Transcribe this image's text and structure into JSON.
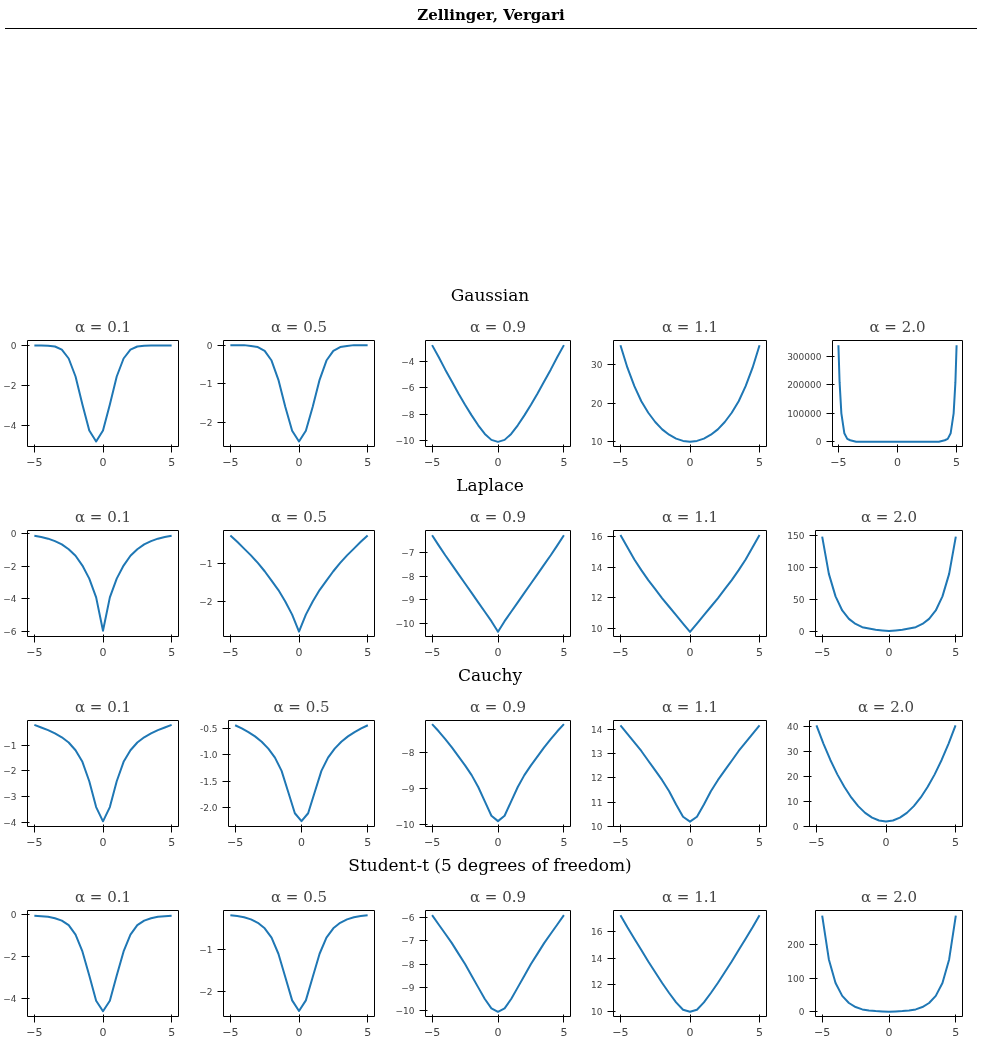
{
  "chart_data": [
    {
      "type": "line",
      "title": "α = 0.1",
      "annotations": [
        "Zellinger, Vergari"
      ],
      "color": "#1f77b4",
      "grid": false,
      "x": [
        -5,
        -4.5,
        -4,
        -3.5,
        -3,
        -2.5,
        -2,
        -1.5,
        -1,
        -0.5,
        0,
        0.5,
        1,
        1.5,
        2,
        2.5,
        3,
        3.5,
        4,
        4.5,
        5
      ],
      "values": [
        0,
        0,
        -0.01,
        -0.05,
        -0.21,
        -0.65,
        -1.55,
        -2.95,
        -4.25,
        -4.8,
        -4.25,
        -2.95,
        -1.55,
        -0.65,
        -0.21,
        -0.05,
        -0.01,
        0,
        0,
        0,
        0
      ],
      "xlim": [
        -5.5,
        5.5
      ],
      "xticks": [
        -5,
        0,
        5
      ],
      "ylim": [
        -5.05,
        0.25
      ],
      "yticks": [
        -4,
        -2,
        0
      ]
    },
    {
      "type": "line",
      "title": "α = 0.5",
      "color": "#1f77b4",
      "grid": false,
      "x": [
        -5,
        -4.5,
        -4,
        -3.5,
        -3,
        -2.5,
        -2,
        -1.5,
        -1,
        -0.5,
        0,
        0.5,
        1,
        1.5,
        2,
        2.5,
        3,
        3.5,
        4,
        4.5,
        5
      ],
      "values": [
        0,
        0,
        0,
        -0.02,
        -0.05,
        -0.15,
        -0.4,
        -0.9,
        -1.6,
        -2.22,
        -2.5,
        -2.22,
        -1.6,
        -0.9,
        -0.4,
        -0.15,
        -0.05,
        -0.02,
        0,
        0,
        0
      ],
      "xlim": [
        -5.5,
        5.5
      ],
      "xticks": [
        -5,
        0,
        5
      ],
      "ylim": [
        -2.63,
        0.12
      ],
      "yticks": [
        -2,
        -1,
        0
      ]
    },
    {
      "type": "line",
      "title": "α = 0.9",
      "annotations": [
        "Gaussian"
      ],
      "color": "#1f77b4",
      "grid": false,
      "x": [
        -5,
        -4.5,
        -4,
        -3.5,
        -3,
        -2.5,
        -2,
        -1.5,
        -1,
        -0.5,
        0,
        0.5,
        1,
        1.5,
        2,
        2.5,
        3,
        3.5,
        4,
        4.5,
        5
      ],
      "values": [
        -2.8,
        -3.7,
        -4.65,
        -5.55,
        -6.45,
        -7.3,
        -8.1,
        -8.85,
        -9.5,
        -9.95,
        -10.1,
        -9.95,
        -9.5,
        -8.85,
        -8.1,
        -7.3,
        -6.45,
        -5.55,
        -4.65,
        -3.7,
        -2.8
      ],
      "xlim": [
        -5.5,
        5.5
      ],
      "xticks": [
        -5,
        0,
        5
      ],
      "ylim": [
        -10.45,
        -2.45
      ],
      "yticks": [
        -10,
        -8,
        -6,
        -4
      ]
    },
    {
      "type": "line",
      "title": "α = 1.1",
      "color": "#1f77b4",
      "grid": false,
      "x": [
        -5,
        -4.5,
        -4,
        -3.5,
        -3,
        -2.5,
        -2,
        -1.5,
        -1,
        -0.5,
        0,
        0.5,
        1,
        1.5,
        2,
        2.5,
        3,
        3.5,
        4,
        4.5,
        5
      ],
      "values": [
        35,
        29.2,
        24.4,
        20.5,
        17.5,
        15.1,
        13.2,
        11.8,
        10.8,
        10.2,
        10,
        10.2,
        10.8,
        11.8,
        13.2,
        15.1,
        17.5,
        20.5,
        24.4,
        29.2,
        35
      ],
      "xlim": [
        -5.5,
        5.5
      ],
      "xticks": [
        -5,
        0,
        5
      ],
      "ylim": [
        8.75,
        36.25
      ],
      "yticks": [
        10,
        20,
        30
      ]
    },
    {
      "type": "line",
      "title": "α = 2.0",
      "color": "#1f77b4",
      "grid": false,
      "x": [
        -5,
        -4.9,
        -4.75,
        -4.5,
        -4.25,
        -4,
        -3.5,
        -3,
        -2,
        -1,
        0,
        1,
        2,
        3,
        3.5,
        4,
        4.25,
        4.5,
        4.75,
        4.9,
        5
      ],
      "values": [
        340000,
        210000,
        100000,
        30000,
        10000,
        5000,
        0,
        0,
        0,
        0,
        0,
        0,
        0,
        0,
        0,
        5000,
        10000,
        30000,
        100000,
        210000,
        340000
      ],
      "xlim": [
        -5.5,
        5.5
      ],
      "xticks": [
        -5,
        0,
        5
      ],
      "ylim": [
        -17000,
        357000
      ],
      "yticks": [
        0,
        100000,
        200000,
        300000
      ]
    },
    {
      "type": "line",
      "title": "α = 0.1",
      "color": "#1f77b4",
      "grid": false,
      "x": [
        -5,
        -4.5,
        -4,
        -3.5,
        -3,
        -2.5,
        -2,
        -1.5,
        -1,
        -0.5,
        0,
        0.5,
        1,
        1.5,
        2,
        2.5,
        3,
        3.5,
        4,
        4.5,
        5
      ],
      "values": [
        -0.12,
        -0.2,
        -0.3,
        -0.45,
        -0.65,
        -0.95,
        -1.35,
        -1.95,
        -2.75,
        -3.9,
        -5.95,
        -3.9,
        -2.75,
        -1.95,
        -1.35,
        -0.95,
        -0.65,
        -0.45,
        -0.3,
        -0.2,
        -0.12
      ],
      "xlim": [
        -5.5,
        5.5
      ],
      "xticks": [
        -5,
        0,
        5
      ],
      "ylim": [
        -6.3,
        0.2
      ],
      "yticks": [
        -6,
        -4,
        -2,
        0
      ]
    },
    {
      "type": "line",
      "title": "α = 0.5",
      "color": "#1f77b4",
      "grid": false,
      "x": [
        -5,
        -4.5,
        -4,
        -3.5,
        -3,
        -2.5,
        -2,
        -1.5,
        -1,
        -0.5,
        0,
        0.5,
        1,
        1.5,
        2,
        2.5,
        3,
        3.5,
        4,
        4.5,
        5
      ],
      "values": [
        -0.25,
        -0.42,
        -0.6,
        -0.78,
        -0.98,
        -1.2,
        -1.45,
        -1.7,
        -2.0,
        -2.35,
        -2.8,
        -2.35,
        -2.0,
        -1.7,
        -1.45,
        -1.2,
        -0.98,
        -0.78,
        -0.6,
        -0.42,
        -0.25
      ],
      "xlim": [
        -5.5,
        5.5
      ],
      "xticks": [
        -5,
        0,
        5
      ],
      "ylim": [
        -2.93,
        -0.12
      ],
      "yticks": [
        -2,
        -1
      ]
    },
    {
      "type": "line",
      "title": "α = 0.9",
      "annotations": [
        "Laplace"
      ],
      "color": "#1f77b4",
      "grid": false,
      "x": [
        -5,
        -4.5,
        -4,
        -3.5,
        -3,
        -2.5,
        -2,
        -1.5,
        -1,
        -0.5,
        0,
        0.5,
        1,
        1.5,
        2,
        2.5,
        3,
        3.5,
        4,
        4.5,
        5
      ],
      "values": [
        -6.25,
        -6.68,
        -7.1,
        -7.5,
        -7.9,
        -8.3,
        -8.7,
        -9.1,
        -9.5,
        -9.9,
        -10.35,
        -9.9,
        -9.5,
        -9.1,
        -8.7,
        -8.3,
        -7.9,
        -7.5,
        -7.1,
        -6.68,
        -6.25
      ],
      "xlim": [
        -5.5,
        5.5
      ],
      "xticks": [
        -5,
        0,
        5
      ],
      "ylim": [
        -10.55,
        -6.05
      ],
      "yticks": [
        -10,
        -9,
        -8,
        -7
      ]
    },
    {
      "type": "line",
      "title": "α = 1.1",
      "color": "#1f77b4",
      "grid": false,
      "x": [
        -5,
        -4.5,
        -4,
        -3.5,
        -3,
        -2.5,
        -2,
        -1.5,
        -1,
        -0.5,
        0,
        0.5,
        1,
        1.5,
        2,
        2.5,
        3,
        3.5,
        4,
        4.5,
        5
      ],
      "values": [
        16.1,
        15.3,
        14.5,
        13.8,
        13.15,
        12.55,
        11.95,
        11.4,
        10.85,
        10.3,
        9.75,
        10.3,
        10.85,
        11.4,
        11.95,
        12.55,
        13.15,
        13.8,
        14.5,
        15.3,
        16.1
      ],
      "xlim": [
        -5.5,
        5.5
      ],
      "xticks": [
        -5,
        0,
        5
      ],
      "ylim": [
        9.45,
        16.4
      ],
      "yticks": [
        10,
        12,
        14,
        16
      ]
    },
    {
      "type": "line",
      "title": "α = 2.0",
      "color": "#1f77b4",
      "grid": false,
      "x": [
        -5,
        -4.5,
        -4,
        -3.5,
        -3,
        -2.5,
        -2,
        -1.5,
        -1,
        -0.5,
        0,
        0.5,
        1,
        1.5,
        2,
        2.5,
        3,
        3.5,
        4,
        4.5,
        5
      ],
      "values": [
        148,
        90,
        55,
        33,
        20,
        12,
        7,
        5,
        3,
        2,
        1,
        2,
        3,
        5,
        7,
        12,
        20,
        33,
        55,
        90,
        148
      ],
      "xlim": [
        -5.5,
        5.5
      ],
      "xticks": [
        -5,
        0,
        5
      ],
      "ylim": [
        -7.5,
        157.5
      ],
      "yticks": [
        0,
        50,
        100,
        150
      ]
    },
    {
      "type": "line",
      "title": "α = 0.1",
      "color": "#1f77b4",
      "grid": false,
      "x": [
        -5,
        -4.5,
        -4,
        -3.5,
        -3,
        -2.5,
        -2,
        -1.5,
        -1,
        -0.5,
        0,
        0.5,
        1,
        1.5,
        2,
        2.5,
        3,
        3.5,
        4,
        4.5,
        5
      ],
      "values": [
        -0.22,
        -0.32,
        -0.42,
        -0.55,
        -0.7,
        -0.9,
        -1.2,
        -1.65,
        -2.4,
        -3.4,
        -3.95,
        -3.4,
        -2.4,
        -1.65,
        -1.2,
        -0.9,
        -0.7,
        -0.55,
        -0.42,
        -0.32,
        -0.22
      ],
      "xlim": [
        -5.5,
        5.5
      ],
      "xticks": [
        -5,
        0,
        5
      ],
      "ylim": [
        -4.15,
        -0.05
      ],
      "yticks": [
        -4,
        -3,
        -2,
        -1
      ]
    },
    {
      "type": "line",
      "title": "α = 0.5",
      "color": "#1f77b4",
      "grid": false,
      "x": [
        -5,
        -4.5,
        -4,
        -3.5,
        -3,
        -2.5,
        -2,
        -1.5,
        -1,
        -0.5,
        0,
        0.5,
        1,
        1.5,
        2,
        2.5,
        3,
        3.5,
        4,
        4.5,
        5
      ],
      "values": [
        -0.44,
        -0.5,
        -0.57,
        -0.65,
        -0.75,
        -0.88,
        -1.05,
        -1.3,
        -1.7,
        -2.1,
        -2.25,
        -2.1,
        -1.7,
        -1.3,
        -1.05,
        -0.88,
        -0.75,
        -0.65,
        -0.57,
        -0.5,
        -0.44
      ],
      "xlim": [
        -5.5,
        5.5
      ],
      "xticks": [
        -5,
        0,
        5
      ],
      "ylim": [
        -2.35,
        -0.35
      ],
      "yticks": [
        {
          "value": -2,
          "label": "-2.0"
        },
        {
          "value": -1.5,
          "label": "-1.5"
        },
        {
          "value": -1,
          "label": "-1.0"
        },
        {
          "value": -0.5,
          "label": "-0.5"
        }
      ]
    },
    {
      "type": "line",
      "title": "α = 0.9",
      "annotations": [
        "Cauchy"
      ],
      "color": "#1f77b4",
      "grid": false,
      "x": [
        -5,
        -4.5,
        -4,
        -3.5,
        -3,
        -2.5,
        -2,
        -1.5,
        -1,
        -0.5,
        0,
        0.5,
        1,
        1.5,
        2,
        2.5,
        3,
        3.5,
        4,
        4.5,
        5
      ],
      "values": [
        -7.2,
        -7.4,
        -7.62,
        -7.85,
        -8.1,
        -8.35,
        -8.62,
        -8.95,
        -9.35,
        -9.75,
        -9.9,
        -9.75,
        -9.35,
        -8.95,
        -8.62,
        -8.35,
        -8.1,
        -7.85,
        -7.62,
        -7.4,
        -7.2
      ],
      "xlim": [
        -5.5,
        5.5
      ],
      "xticks": [
        -5,
        0,
        5
      ],
      "ylim": [
        -10.05,
        -7.1
      ],
      "yticks": [
        -10,
        -9,
        -8
      ]
    },
    {
      "type": "line",
      "title": "α = 1.1",
      "color": "#1f77b4",
      "grid": false,
      "x": [
        -5,
        -4.5,
        -4,
        -3.5,
        -3,
        -2.5,
        -2,
        -1.5,
        -1,
        -0.5,
        0,
        0.5,
        1,
        1.5,
        2,
        2.5,
        3,
        3.5,
        4,
        4.5,
        5
      ],
      "values": [
        14.15,
        13.8,
        13.45,
        13.1,
        12.7,
        12.3,
        11.9,
        11.45,
        10.9,
        10.4,
        10.2,
        10.4,
        10.9,
        11.45,
        11.9,
        12.3,
        12.7,
        13.1,
        13.45,
        13.8,
        14.15
      ],
      "xlim": [
        -5.5,
        5.5
      ],
      "xticks": [
        -5,
        0,
        5
      ],
      "ylim": [
        10,
        14.35
      ],
      "yticks": [
        10,
        11,
        12,
        13,
        14
      ]
    },
    {
      "type": "line",
      "title": "α = 2.0",
      "color": "#1f77b4",
      "grid": false,
      "x": [
        -5,
        -4.5,
        -4,
        -3.5,
        -3,
        -2.5,
        -2,
        -1.5,
        -1,
        -0.5,
        0,
        0.5,
        1,
        1.5,
        2,
        2.5,
        3,
        3.5,
        4,
        4.5,
        5
      ],
      "values": [
        40.5,
        33.2,
        26.6,
        20.8,
        15.8,
        11.5,
        8,
        5.3,
        3.4,
        2.2,
        1.8,
        2.2,
        3.4,
        5.3,
        8,
        11.5,
        15.8,
        20.8,
        26.6,
        33.2,
        40.5
      ],
      "xlim": [
        -5.5,
        5.5
      ],
      "xticks": [
        -5,
        0,
        5
      ],
      "ylim": [
        -0.2,
        42.5
      ],
      "yticks": [
        0,
        10,
        20,
        30,
        40
      ]
    },
    {
      "type": "line",
      "title": "α = 0.1",
      "color": "#1f77b4",
      "grid": false,
      "x": [
        -5,
        -4.5,
        -4,
        -3.5,
        -3,
        -2.5,
        -2,
        -1.5,
        -1,
        -0.5,
        0,
        0.5,
        1,
        1.5,
        2,
        2.5,
        3,
        3.5,
        4,
        4.5,
        5
      ],
      "values": [
        -0.05,
        -0.07,
        -0.1,
        -0.17,
        -0.28,
        -0.5,
        -0.95,
        -1.75,
        -2.9,
        -4.1,
        -4.6,
        -4.1,
        -2.9,
        -1.75,
        -0.95,
        -0.5,
        -0.28,
        -0.17,
        -0.1,
        -0.07,
        -0.05
      ],
      "xlim": [
        -5.5,
        5.5
      ],
      "xticks": [
        -5,
        0,
        5
      ],
      "ylim": [
        -4.85,
        0.2
      ],
      "yticks": [
        -4,
        -2,
        0
      ]
    },
    {
      "type": "line",
      "title": "α = 0.5",
      "color": "#1f77b4",
      "grid": false,
      "x": [
        -5,
        -4.5,
        -4,
        -3.5,
        -3,
        -2.5,
        -2,
        -1.5,
        -1,
        -0.5,
        0,
        0.5,
        1,
        1.5,
        2,
        2.5,
        3,
        3.5,
        4,
        4.5,
        5
      ],
      "values": [
        -0.19,
        -0.21,
        -0.24,
        -0.29,
        -0.37,
        -0.5,
        -0.72,
        -1.1,
        -1.65,
        -2.2,
        -2.45,
        -2.2,
        -1.65,
        -1.1,
        -0.72,
        -0.5,
        -0.37,
        -0.29,
        -0.24,
        -0.21,
        -0.19
      ],
      "xlim": [
        -5.5,
        5.5
      ],
      "xticks": [
        -5,
        0,
        5
      ],
      "ylim": [
        -2.58,
        -0.08
      ],
      "yticks": [
        -2,
        -1
      ]
    },
    {
      "type": "line",
      "title": "α = 0.9",
      "annotations": [
        "Student-t (5 degrees of freedom)"
      ],
      "color": "#1f77b4",
      "grid": false,
      "x": [
        -5,
        -4.5,
        -4,
        -3.5,
        -3,
        -2.5,
        -2,
        -1.5,
        -1,
        -0.5,
        0,
        0.5,
        1,
        1.5,
        2,
        2.5,
        3,
        3.5,
        4,
        4.5,
        5
      ],
      "values": [
        -5.9,
        -6.3,
        -6.7,
        -7.1,
        -7.55,
        -8.0,
        -8.5,
        -9.0,
        -9.5,
        -9.9,
        -10.05,
        -9.9,
        -9.5,
        -9.0,
        -8.5,
        -8.0,
        -7.55,
        -7.1,
        -6.7,
        -6.3,
        -5.9
      ],
      "xlim": [
        -5.5,
        5.5
      ],
      "xticks": [
        -5,
        0,
        5
      ],
      "ylim": [
        -10.25,
        -5.7
      ],
      "yticks": [
        -10,
        -9,
        -8,
        -7,
        -6
      ]
    },
    {
      "type": "line",
      "title": "α = 1.1",
      "color": "#1f77b4",
      "grid": false,
      "x": [
        -5,
        -4.5,
        -4,
        -3.5,
        -3,
        -2.5,
        -2,
        -1.5,
        -1,
        -0.5,
        0,
        0.5,
        1,
        1.5,
        2,
        2.5,
        3,
        3.5,
        4,
        4.5,
        5
      ],
      "values": [
        17.2,
        16.3,
        15.45,
        14.6,
        13.75,
        12.95,
        12.15,
        11.4,
        10.7,
        10.15,
        10,
        10.15,
        10.7,
        11.4,
        12.15,
        12.95,
        13.75,
        14.6,
        15.45,
        16.3,
        17.2
      ],
      "xlim": [
        -5.5,
        5.5
      ],
      "xticks": [
        -5,
        0,
        5
      ],
      "ylim": [
        9.65,
        17.55
      ],
      "yticks": [
        10,
        12,
        14,
        16
      ]
    },
    {
      "type": "line",
      "title": "α = 2.0",
      "color": "#1f77b4",
      "grid": false,
      "x": [
        -5,
        -4.5,
        -4,
        -3.5,
        -3,
        -2.5,
        -2,
        -1.5,
        -1,
        -0.5,
        0,
        0.5,
        1,
        1.5,
        2,
        2.5,
        3,
        3.5,
        4,
        4.5,
        5
      ],
      "values": [
        285,
        155,
        85,
        47,
        26,
        14,
        7,
        4,
        2,
        1,
        0,
        1,
        2,
        4,
        7,
        14,
        26,
        47,
        85,
        155,
        285
      ],
      "xlim": [
        -5.5,
        5.5
      ],
      "xticks": [
        -5,
        0,
        5
      ],
      "ylim": [
        -14,
        300
      ],
      "yticks": [
        0,
        100,
        200
      ]
    }
  ]
}
